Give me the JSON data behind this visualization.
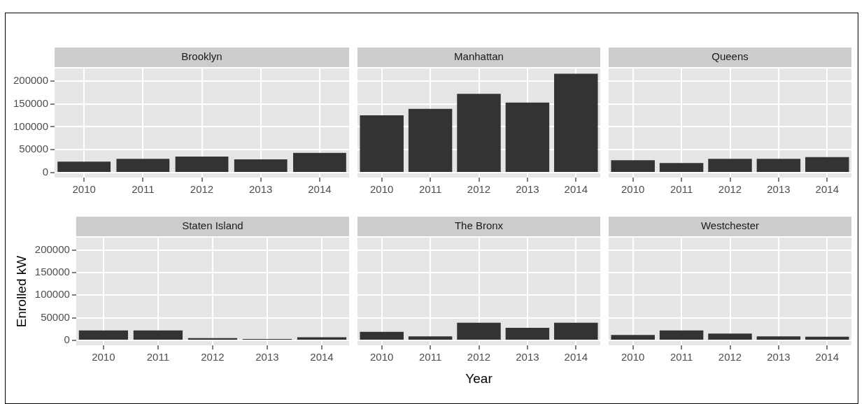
{
  "chart_data": [
    {
      "type": "bar",
      "title": "Brooklyn",
      "categories": [
        "2010",
        "2011",
        "2012",
        "2013",
        "2014"
      ],
      "values": [
        24000,
        30000,
        35000,
        29000,
        43000
      ],
      "color": "#333333",
      "ylim": [
        -10800,
        227300
      ],
      "yticks": [
        0,
        50000,
        100000,
        150000,
        200000
      ],
      "grid": true
    },
    {
      "type": "bar",
      "title": "Manhattan",
      "categories": [
        "2010",
        "2011",
        "2012",
        "2013",
        "2014"
      ],
      "values": [
        125000,
        139000,
        172000,
        153000,
        216000
      ],
      "color": "#333333",
      "ylim": [
        -10800,
        227300
      ],
      "yticks": [
        0,
        50000,
        100000,
        150000,
        200000
      ],
      "grid": true,
      "tick_labels": "x"
    },
    {
      "type": "bar",
      "title": "Queens",
      "categories": [
        "2010",
        "2011",
        "2012",
        "2013",
        "2014"
      ],
      "values": [
        27000,
        21000,
        30000,
        30000,
        34000
      ],
      "color": "#333333",
      "ylim": [
        -10800,
        227300
      ],
      "yticks": [
        0,
        50000,
        100000,
        150000,
        200000
      ],
      "grid": true,
      "tick_labels": "x"
    },
    {
      "type": "bar",
      "title": "Staten Island",
      "ylabel": "Enrolled kW",
      "categories": [
        "2010",
        "2011",
        "2012",
        "2013",
        "2014"
      ],
      "values": [
        22000,
        22000,
        5000,
        3000,
        7000
      ],
      "color": "#333333",
      "ylim": [
        -10800,
        227300
      ],
      "yticks": [
        0,
        50000,
        100000,
        150000,
        200000
      ],
      "grid": true
    },
    {
      "type": "bar",
      "title": "The Bronx",
      "xlabel": "Year",
      "categories": [
        "2010",
        "2011",
        "2012",
        "2013",
        "2014"
      ],
      "values": [
        19000,
        9000,
        39000,
        28000,
        39000
      ],
      "color": "#333333",
      "ylim": [
        -10800,
        227300
      ],
      "yticks": [
        0,
        50000,
        100000,
        150000,
        200000
      ],
      "grid": true,
      "tick_labels": "x"
    },
    {
      "type": "bar",
      "title": "Westchester",
      "categories": [
        "2010",
        "2011",
        "2012",
        "2013",
        "2014"
      ],
      "values": [
        12000,
        22000,
        15000,
        9000,
        8000
      ],
      "color": "#333333",
      "ylim": [
        -10800,
        227300
      ],
      "yticks": [
        0,
        50000,
        100000,
        150000,
        200000
      ],
      "grid": true,
      "tick_labels": "x"
    }
  ]
}
